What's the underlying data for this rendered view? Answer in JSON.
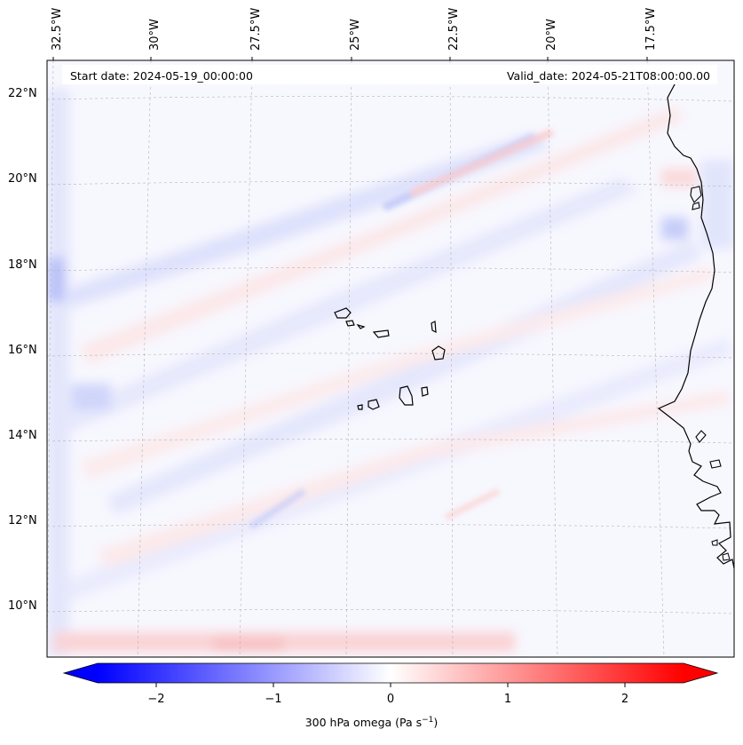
{
  "map": {
    "start_date_label": "Start date: 2024-05-19_00:00:00",
    "valid_date_label": "Valid_date: 2024-05-21T08:00:00.00",
    "longitude_labels": [
      "32.5°W",
      "30°W",
      "27.5°W",
      "25°W",
      "22.5°W",
      "20°W",
      "17.5°W"
    ],
    "latitude_labels": [
      "22°N",
      "20°N",
      "18°N",
      "16°N",
      "14°N",
      "12°N",
      "10°N"
    ],
    "field": "300 hPa omega",
    "coastline_color": "#000000",
    "gridlines": true
  },
  "colorbar": {
    "label_main": "300 hPa omega (Pa s",
    "label_exp": "−1",
    "label_close": ")",
    "tick_labels": [
      "−2",
      "−1",
      "0",
      "1",
      "2"
    ],
    "tick_values": [
      -2,
      -1,
      0,
      1,
      2
    ],
    "range": [
      -2.5,
      2.5
    ],
    "cmap": "bwr",
    "colors": {
      "low": "#0000ff",
      "mid": "#ffffff",
      "high": "#ff0000"
    }
  }
}
